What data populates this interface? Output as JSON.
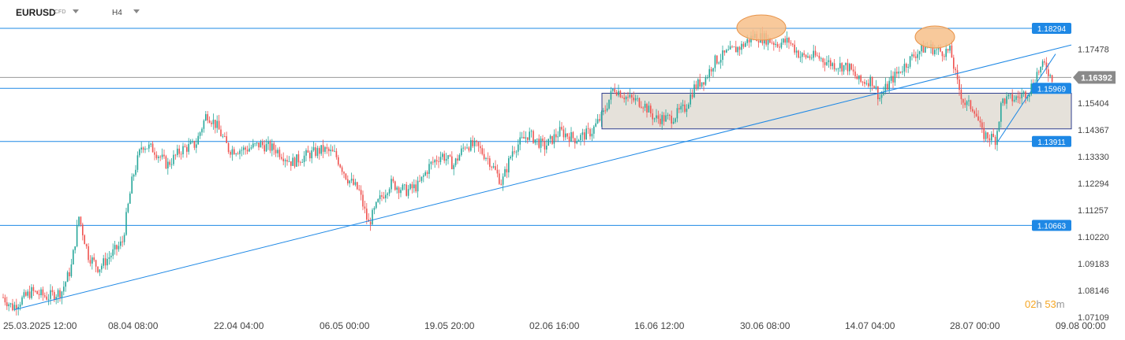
{
  "toolbar": {
    "symbol": "EURUSD",
    "symbol_type": "CFD",
    "timeframe": "H4"
  },
  "timer": {
    "hours": "02",
    "h": "h",
    "minutes": "53",
    "m": "m"
  },
  "colors": {
    "line": "#1e88e5",
    "up": "#26a69a",
    "down": "#ef5350",
    "zone": "#e5e1da",
    "zone_border": "#2f3f8f",
    "marker": "#f7c08a",
    "price_badge": "#8a8a8a",
    "level_badge": "#1e88e5"
  },
  "chart_data": {
    "type": "candlestick",
    "y_range": [
      1.0711,
      1.1878
    ],
    "y_ticks": [
      "1.17478",
      "1.16392",
      "1.15404",
      "1.14367",
      "1.13330",
      "1.12294",
      "1.11257",
      "1.10220",
      "1.09183",
      "1.08146",
      "1.07109"
    ],
    "x_labels": [
      "25.03.2025  12:00",
      "08.04  08:00",
      "22.04  04:00",
      "06.05  00:00",
      "19.05  20:00",
      "02.06  16:00",
      "16.06  12:00",
      "30.06  08:00",
      "14.07  04:00",
      "28.07  00:00",
      "09.08  00:00"
    ],
    "current_price": "1.16392",
    "levels": [
      {
        "label": "1.18294",
        "value": 1.18294
      },
      {
        "label": "1.15969",
        "value": 1.15969
      },
      {
        "label": "1.13911",
        "value": 1.13911
      },
      {
        "label": "1.10663",
        "value": 1.10663
      }
    ],
    "zone": {
      "from": 1.144,
      "to": 1.1578
    },
    "close_path": [
      [
        0,
        1.08
      ],
      [
        16,
        1.075
      ],
      [
        40,
        1.081
      ],
      [
        60,
        1.079
      ],
      [
        78,
        1.081
      ],
      [
        90,
        1.09
      ],
      [
        100,
        1.11
      ],
      [
        112,
        1.095
      ],
      [
        125,
        1.09
      ],
      [
        140,
        1.095
      ],
      [
        155,
        1.1
      ],
      [
        168,
        1.125
      ],
      [
        180,
        1.138
      ],
      [
        195,
        1.136
      ],
      [
        212,
        1.13
      ],
      [
        230,
        1.136
      ],
      [
        248,
        1.138
      ],
      [
        262,
        1.15
      ],
      [
        275,
        1.145
      ],
      [
        290,
        1.136
      ],
      [
        310,
        1.136
      ],
      [
        330,
        1.138
      ],
      [
        350,
        1.136
      ],
      [
        370,
        1.131
      ],
      [
        390,
        1.134
      ],
      [
        410,
        1.136
      ],
      [
        425,
        1.134
      ],
      [
        440,
        1.125
      ],
      [
        455,
        1.12
      ],
      [
        467,
        1.107
      ],
      [
        480,
        1.116
      ],
      [
        495,
        1.123
      ],
      [
        515,
        1.12
      ],
      [
        530,
        1.122
      ],
      [
        545,
        1.13
      ],
      [
        560,
        1.134
      ],
      [
        575,
        1.13
      ],
      [
        590,
        1.138
      ],
      [
        605,
        1.137
      ],
      [
        620,
        1.132
      ],
      [
        636,
        1.123
      ],
      [
        650,
        1.136
      ],
      [
        670,
        1.142
      ],
      [
        690,
        1.137
      ],
      [
        710,
        1.143
      ],
      [
        730,
        1.14
      ],
      [
        750,
        1.143
      ],
      [
        765,
        1.15
      ],
      [
        778,
        1.16
      ],
      [
        795,
        1.156
      ],
      [
        815,
        1.154
      ],
      [
        830,
        1.148
      ],
      [
        850,
        1.148
      ],
      [
        868,
        1.152
      ],
      [
        880,
        1.16
      ],
      [
        895,
        1.164
      ],
      [
        905,
        1.17
      ],
      [
        920,
        1.173
      ],
      [
        940,
        1.176
      ],
      [
        955,
        1.18
      ],
      [
        970,
        1.179
      ],
      [
        985,
        1.177
      ],
      [
        1000,
        1.178
      ],
      [
        1015,
        1.172
      ],
      [
        1035,
        1.172
      ],
      [
        1055,
        1.169
      ],
      [
        1075,
        1.168
      ],
      [
        1090,
        1.162
      ],
      [
        1105,
        1.163
      ],
      [
        1115,
        1.156
      ],
      [
        1130,
        1.163
      ],
      [
        1145,
        1.168
      ],
      [
        1160,
        1.173
      ],
      [
        1175,
        1.176
      ],
      [
        1190,
        1.174
      ],
      [
        1205,
        1.174
      ],
      [
        1213,
        1.162
      ],
      [
        1222,
        1.154
      ],
      [
        1235,
        1.152
      ],
      [
        1245,
        1.142
      ],
      [
        1262,
        1.14
      ],
      [
        1270,
        1.155
      ],
      [
        1290,
        1.156
      ],
      [
        1305,
        1.159
      ],
      [
        1315,
        1.166
      ],
      [
        1325,
        1.169
      ],
      [
        1332,
        1.1639
      ]
    ]
  }
}
